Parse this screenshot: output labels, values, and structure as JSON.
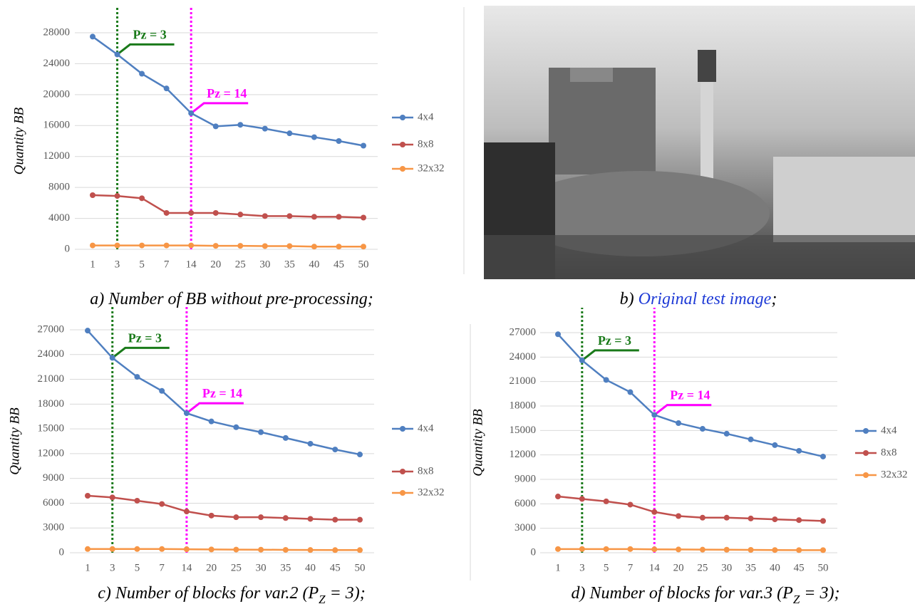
{
  "chart_data": [
    {
      "type": "line",
      "y_label": "Quantity BB",
      "caption": [
        "a) Number of BB without pre-processing;"
      ],
      "categories": [
        "1",
        "3",
        "5",
        "7",
        "14",
        "20",
        "25",
        "30",
        "35",
        "40",
        "45",
        "50"
      ],
      "series": [
        {
          "name": "4x4",
          "color": "#4f7fc0",
          "values": [
            27500,
            25200,
            22700,
            20800,
            17600,
            15900,
            16100,
            15600,
            15000,
            14500,
            14000,
            13400
          ]
        },
        {
          "name": "8x8",
          "color": "#c0504d",
          "values": [
            7000,
            6900,
            6600,
            4700,
            4700,
            4700,
            4500,
            4300,
            4300,
            4200,
            4200,
            4100
          ]
        },
        {
          "name": "32x32",
          "color": "#f79646",
          "values": [
            500,
            500,
            500,
            500,
            500,
            450,
            450,
            420,
            420,
            350,
            350,
            350
          ]
        }
      ],
      "ylim": [
        0,
        28000
      ],
      "yticks": [
        0,
        4000,
        8000,
        12000,
        16000,
        20000,
        24000,
        28000
      ],
      "grid": true,
      "annotations": [
        {
          "text": "Pz = 3",
          "x": "3",
          "color": "#1a7a1a"
        },
        {
          "text": "Pz = 14",
          "x": "14",
          "color": "#ff00ff"
        }
      ]
    },
    {
      "type": "line",
      "y_label": "Quantity BB",
      "caption": [
        "c) Number of blocks for var.2 (P",
        "Z",
        " = 3);"
      ],
      "categories": [
        "1",
        "3",
        "5",
        "7",
        "14",
        "20",
        "25",
        "30",
        "35",
        "40",
        "45",
        "50"
      ],
      "series": [
        {
          "name": "4x4",
          "color": "#4f7fc0",
          "values": [
            26900,
            23600,
            21300,
            19600,
            16900,
            15900,
            15200,
            14600,
            13900,
            13200,
            12500,
            11900
          ]
        },
        {
          "name": "8x8",
          "color": "#c0504d",
          "values": [
            6900,
            6700,
            6300,
            5900,
            5000,
            4500,
            4300,
            4300,
            4200,
            4100,
            4000,
            4000
          ]
        },
        {
          "name": "32x32",
          "color": "#f79646",
          "values": [
            450,
            450,
            450,
            450,
            420,
            400,
            380,
            370,
            350,
            330,
            320,
            320
          ]
        }
      ],
      "ylim": [
        0,
        27000
      ],
      "yticks": [
        0,
        3000,
        6000,
        9000,
        12000,
        15000,
        18000,
        21000,
        24000,
        27000
      ],
      "grid": true,
      "annotations": [
        {
          "text": "Pz = 3",
          "x": "3",
          "color": "#1a7a1a"
        },
        {
          "text": "Pz = 14",
          "x": "14",
          "color": "#ff00ff"
        }
      ]
    },
    {
      "type": "line",
      "y_label": "Quantity BB",
      "caption": [
        "d) Number of blocks for var.3 (P",
        "Z",
        " = 3);"
      ],
      "categories": [
        "1",
        "3",
        "5",
        "7",
        "14",
        "20",
        "25",
        "30",
        "35",
        "40",
        "45",
        "50"
      ],
      "series": [
        {
          "name": "4x4",
          "color": "#4f7fc0",
          "values": [
            26800,
            23600,
            21200,
            19700,
            16900,
            15900,
            15200,
            14600,
            13900,
            13200,
            12500,
            11800
          ]
        },
        {
          "name": "8x8",
          "color": "#c0504d",
          "values": [
            6900,
            6600,
            6300,
            5900,
            5000,
            4500,
            4300,
            4300,
            4200,
            4100,
            4000,
            3900
          ]
        },
        {
          "name": "32x32",
          "color": "#f79646",
          "values": [
            450,
            450,
            450,
            450,
            420,
            400,
            380,
            370,
            350,
            330,
            320,
            320
          ]
        }
      ],
      "ylim": [
        0,
        27000
      ],
      "yticks": [
        0,
        3000,
        6000,
        9000,
        12000,
        15000,
        18000,
        21000,
        24000,
        27000
      ],
      "grid": true,
      "annotations": [
        {
          "text": "Pz = 3",
          "x": "3",
          "color": "#1a7a1a"
        },
        {
          "text": "Pz = 14",
          "x": "14",
          "color": "#ff00ff"
        }
      ]
    }
  ],
  "image": {
    "caption_prefix": "b)",
    "caption_link": "Original test image",
    "caption_suffix": ";"
  }
}
